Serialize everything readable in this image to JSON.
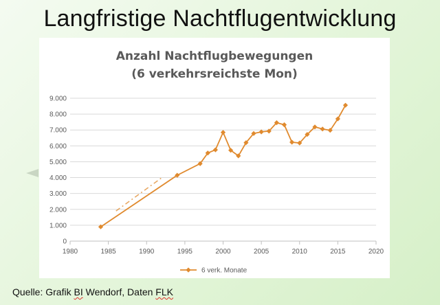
{
  "slide": {
    "title": "Langfristige Nachtflugentwicklung",
    "source_prefix": "Quelle: Grafik ",
    "source_bi": "BI",
    "source_mid": " Wendorf, Daten ",
    "source_flk": "FLK"
  },
  "chart_data": {
    "type": "line",
    "title": "Anzahl Nachtflugbewegungen",
    "subtitle": "(6 verkehrsreichste Mon)",
    "xlabel": "",
    "ylabel": "",
    "xlim": [
      1980,
      2020
    ],
    "ylim": [
      0,
      9000
    ],
    "x_ticks": [
      1980,
      1985,
      1990,
      1995,
      2000,
      2005,
      2010,
      2015,
      2020
    ],
    "y_ticks": [
      0,
      1000,
      2000,
      3000,
      4000,
      5000,
      6000,
      7000,
      8000,
      9000
    ],
    "y_tick_labels": [
      "0",
      "1.000",
      "2.000",
      "3.000",
      "4.000",
      "5.000",
      "6.000",
      "7.000",
      "8.000",
      "9.000"
    ],
    "grid": "horizontal",
    "legend_position": "bottom",
    "color": "#e08a2e",
    "series": [
      {
        "name": "6 verk. Monate",
        "x": [
          1984,
          1994,
          1997,
          1998,
          1999,
          2000,
          2001,
          2002,
          2003,
          2004,
          2005,
          2006,
          2007,
          2008,
          2009,
          2010,
          2011,
          2012,
          2013,
          2014,
          2015,
          2016
        ],
        "y": [
          900,
          4150,
          4880,
          5550,
          5750,
          6850,
          5720,
          5370,
          6200,
          6780,
          6880,
          6930,
          7460,
          7330,
          6230,
          6180,
          6720,
          7190,
          7060,
          6980,
          7700,
          8560
        ]
      }
    ],
    "trend_dashed": {
      "x": [
        1986,
        1992
      ],
      "y": [
        1900,
        4000
      ]
    }
  }
}
